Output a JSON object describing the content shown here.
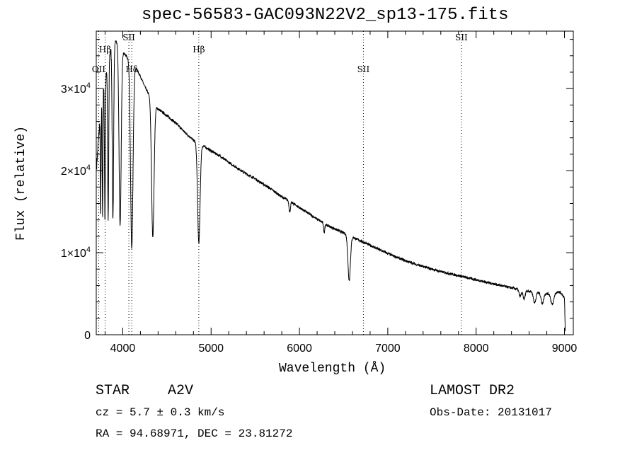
{
  "chart_data": {
    "type": "line",
    "title": "spec-56583-GAC093N22V2_sp13-175.fits",
    "xlabel": "Wavelength (Å)",
    "ylabel": "Flux (relative)",
    "xlim": [
      3700,
      9100
    ],
    "ylim": [
      0,
      37000
    ],
    "x_ticks": [
      4000,
      5000,
      6000,
      7000,
      8000,
      9000
    ],
    "x_tick_labels": [
      "4000",
      "5000",
      "6000",
      "7000",
      "8000",
      "9000"
    ],
    "y_ticks": [
      0,
      10000,
      20000,
      30000
    ],
    "y_tick_labels": [
      {
        "mantissa": "0",
        "exp": ""
      },
      {
        "mantissa": "1×10",
        "exp": "4"
      },
      {
        "mantissa": "2×10",
        "exp": "4"
      },
      {
        "mantissa": "3×10",
        "exp": "4"
      }
    ],
    "continuum": [
      [
        3700,
        20000
      ],
      [
        3740,
        26000
      ],
      [
        3780,
        30000
      ],
      [
        3820,
        32500
      ],
      [
        3860,
        34500
      ],
      [
        3900,
        36000
      ],
      [
        3950,
        35500
      ],
      [
        4000,
        34500
      ],
      [
        4050,
        33800
      ],
      [
        4100,
        33000
      ],
      [
        4150,
        32500
      ],
      [
        4200,
        31500
      ],
      [
        4250,
        30200
      ],
      [
        4300,
        29200
      ],
      [
        4350,
        28300
      ],
      [
        4400,
        27500
      ],
      [
        4500,
        26700
      ],
      [
        4600,
        25800
      ],
      [
        4700,
        24700
      ],
      [
        4800,
        23700
      ],
      [
        4900,
        23100
      ],
      [
        5000,
        22400
      ],
      [
        5100,
        21800
      ],
      [
        5200,
        21000
      ],
      [
        5300,
        20300
      ],
      [
        5400,
        19600
      ],
      [
        5500,
        19000
      ],
      [
        5600,
        18300
      ],
      [
        5700,
        17600
      ],
      [
        5800,
        16800
      ],
      [
        5900,
        16200
      ],
      [
        6000,
        15500
      ],
      [
        6100,
        14800
      ],
      [
        6200,
        14100
      ],
      [
        6300,
        13400
      ],
      [
        6400,
        12900
      ],
      [
        6500,
        12400
      ],
      [
        6600,
        11900
      ],
      [
        6700,
        11400
      ],
      [
        6800,
        10900
      ],
      [
        6900,
        10400
      ],
      [
        7000,
        9900
      ],
      [
        7200,
        9000
      ],
      [
        7400,
        8300
      ],
      [
        7600,
        7700
      ],
      [
        7800,
        7200
      ],
      [
        8000,
        6700
      ],
      [
        8200,
        6200
      ],
      [
        8400,
        5700
      ],
      [
        8600,
        5300
      ],
      [
        8800,
        5000
      ],
      [
        8950,
        5200
      ],
      [
        9000,
        4500
      ],
      [
        9010,
        0
      ]
    ],
    "absorption_features": [
      {
        "center": 3750,
        "width": 4,
        "depth": 0.45
      },
      {
        "center": 3771,
        "width": 4,
        "depth": 0.5
      },
      {
        "center": 3798,
        "width": 5,
        "depth": 0.55
      },
      {
        "center": 3835,
        "width": 6,
        "depth": 0.58
      },
      {
        "center": 3889,
        "width": 8,
        "depth": 0.6
      },
      {
        "center": 3970,
        "width": 12,
        "depth": 0.62
      },
      {
        "center": 4102,
        "width": 14,
        "depth": 0.68
      },
      {
        "center": 4340,
        "width": 14,
        "depth": 0.58
      },
      {
        "center": 4861,
        "width": 14,
        "depth": 0.52
      },
      {
        "center": 5890,
        "width": 8,
        "depth": 0.08
      },
      {
        "center": 6280,
        "width": 6,
        "depth": 0.08
      },
      {
        "center": 6563,
        "width": 14,
        "depth": 0.45
      },
      {
        "center": 8498,
        "width": 12,
        "depth": 0.15
      },
      {
        "center": 8542,
        "width": 12,
        "depth": 0.2
      },
      {
        "center": 8662,
        "width": 14,
        "depth": 0.25
      },
      {
        "center": 8750,
        "width": 14,
        "depth": 0.25
      },
      {
        "center": 8862,
        "width": 16,
        "depth": 0.28
      }
    ],
    "line_markers": [
      {
        "label": "OII",
        "wavelength": 3727,
        "label_y": 32000
      },
      {
        "label": "Hβ",
        "wavelength": 3800,
        "label_y": 34400
      },
      {
        "label": "SII",
        "wavelength": 4069,
        "label_y": 35900
      },
      {
        "label": "Hδ",
        "wavelength": 4102,
        "label_y": 32000
      },
      {
        "label": "Hβ",
        "wavelength": 4861,
        "label_y": 34400
      },
      {
        "label": "SII",
        "wavelength": 6724,
        "label_y": 32000
      },
      {
        "label": "SII",
        "wavelength": 7833,
        "label_y": 35900
      }
    ]
  },
  "info": {
    "object_class": "STAR",
    "subclass": "A2V",
    "survey": "LAMOST DR2",
    "redshift": "cz = 5.7 ± 0.3 km/s",
    "obs_date": "Obs-Date: 20131017",
    "coords": "RA =  94.68971, DEC =  23.81272"
  }
}
